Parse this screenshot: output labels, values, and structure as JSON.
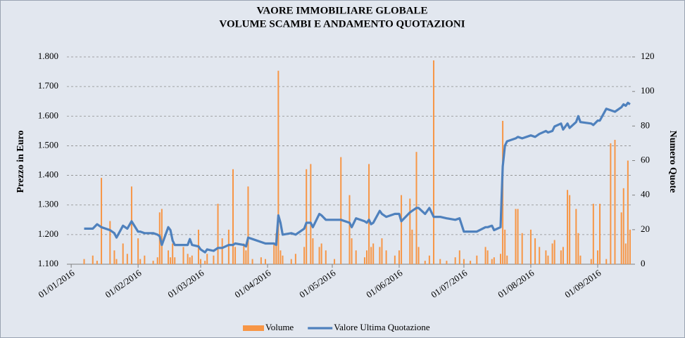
{
  "chart_data": {
    "type": "combo",
    "title": "VAORE IMMOBILIARE GLOBALE",
    "subtitle": "VOLUME SCAMBI E ANDAMENTO QUOTAZIONI",
    "ylabel": "Prezzo in Euro",
    "y2label": "Numero Quote",
    "x": [
      "07/01/2016",
      "11/01/2016",
      "13/01/2016",
      "15/01/2016",
      "19/01/2016",
      "21/01/2016",
      "22/01/2016",
      "25/01/2016",
      "27/01/2016",
      "29/01/2016",
      "01/02/2016",
      "02/02/2016",
      "04/02/2016",
      "08/02/2016",
      "10/02/2016",
      "11/02/2016",
      "12/02/2016",
      "15/02/2016",
      "16/02/2016",
      "17/02/2016",
      "18/02/2016",
      "22/02/2016",
      "24/02/2016",
      "25/02/2016",
      "26/02/2016",
      "29/02/2016",
      "01/03/2016",
      "03/03/2016",
      "04/03/2016",
      "07/03/2016",
      "09/03/2016",
      "11/03/2016",
      "14/03/2016",
      "16/03/2016",
      "17/03/2016",
      "21/03/2016",
      "22/03/2016",
      "23/03/2016",
      "25/03/2016",
      "29/03/2016",
      "31/03/2016",
      "04/04/2016",
      "05/04/2016",
      "06/04/2016",
      "07/04/2016",
      "08/04/2016",
      "12/04/2016",
      "14/04/2016",
      "18/04/2016",
      "19/04/2016",
      "21/04/2016",
      "22/04/2016",
      "25/04/2016",
      "26/04/2016",
      "28/04/2016",
      "02/05/2016",
      "05/05/2016",
      "09/05/2016",
      "10/05/2016",
      "12/05/2016",
      "16/05/2016",
      "17/05/2016",
      "18/05/2016",
      "19/05/2016",
      "20/05/2016",
      "23/05/2016",
      "24/05/2016",
      "26/05/2016",
      "30/05/2016",
      "01/06/2016",
      "02/06/2016",
      "06/06/2016",
      "07/06/2016",
      "09/06/2016",
      "10/06/2016",
      "13/06/2016",
      "15/06/2016",
      "17/06/2016",
      "20/06/2016",
      "23/06/2016",
      "27/06/2016",
      "29/06/2016",
      "01/07/2016",
      "04/07/2016",
      "07/07/2016",
      "11/07/2016",
      "12/07/2016",
      "14/07/2016",
      "15/07/2016",
      "18/07/2016",
      "19/07/2016",
      "20/07/2016",
      "21/07/2016",
      "25/07/2016",
      "26/07/2016",
      "28/07/2016",
      "01/08/2016",
      "03/08/2016",
      "05/08/2016",
      "08/08/2016",
      "09/08/2016",
      "11/08/2016",
      "12/08/2016",
      "15/08/2016",
      "16/08/2016",
      "18/08/2016",
      "19/08/2016",
      "22/08/2016",
      "23/08/2016",
      "24/08/2016",
      "29/08/2016",
      "30/08/2016",
      "01/09/2016",
      "02/09/2016",
      "05/09/2016",
      "07/09/2016",
      "09/09/2016",
      "12/09/2016",
      "13/09/2016",
      "14/09/2016",
      "15/09/2016",
      "16/09/2016"
    ],
    "series": [
      {
        "name": "Volume",
        "color": "#f79646",
        "type": "bar",
        "axis": "y2",
        "values": [
          3,
          5,
          2,
          50,
          25,
          8,
          3,
          12,
          6,
          45,
          15,
          3,
          5,
          2,
          4,
          30,
          32,
          8,
          4,
          12,
          4,
          10,
          6,
          4,
          5,
          20,
          3,
          2,
          6,
          5,
          35,
          15,
          20,
          55,
          10,
          12,
          8,
          45,
          3,
          4,
          3,
          12,
          18,
          112,
          8,
          5,
          3,
          6,
          10,
          55,
          58,
          15,
          10,
          12,
          8,
          3,
          62,
          40,
          15,
          8,
          4,
          8,
          58,
          10,
          12,
          10,
          15,
          8,
          5,
          8,
          40,
          38,
          20,
          65,
          10,
          2,
          5,
          118,
          3,
          2,
          4,
          8,
          3,
          2,
          5,
          10,
          8,
          3,
          4,
          6,
          83,
          20,
          5,
          32,
          32,
          18,
          20,
          15,
          10,
          8,
          5,
          12,
          14,
          8,
          10,
          43,
          40,
          32,
          18,
          5,
          3,
          35,
          8,
          35,
          3,
          70,
          72,
          30,
          44,
          12,
          60,
          20
        ]
      },
      {
        "name": "Valore Ultima Quotazione",
        "color": "#4f81bd",
        "type": "line",
        "values": [
          1.22,
          1.22,
          1.235,
          1.225,
          1.215,
          1.205,
          1.19,
          1.23,
          1.22,
          1.245,
          1.21,
          1.21,
          1.205,
          1.205,
          1.2,
          1.195,
          1.165,
          1.225,
          1.215,
          1.18,
          1.165,
          1.165,
          1.165,
          1.185,
          1.165,
          1.16,
          1.15,
          1.14,
          1.15,
          1.145,
          1.155,
          1.155,
          1.165,
          1.165,
          1.17,
          1.165,
          1.16,
          1.19,
          1.185,
          1.175,
          1.17,
          1.17,
          1.165,
          1.265,
          1.24,
          1.2,
          1.205,
          1.2,
          1.22,
          1.24,
          1.24,
          1.225,
          1.27,
          1.265,
          1.25,
          1.25,
          1.25,
          1.24,
          1.225,
          1.255,
          1.245,
          1.24,
          1.25,
          1.235,
          1.24,
          1.28,
          1.27,
          1.26,
          1.27,
          1.27,
          1.245,
          1.275,
          1.28,
          1.29,
          1.29,
          1.27,
          1.29,
          1.26,
          1.26,
          1.255,
          1.25,
          1.255,
          1.21,
          1.21,
          1.21,
          1.225,
          1.225,
          1.23,
          1.215,
          1.225,
          1.43,
          1.5,
          1.515,
          1.525,
          1.53,
          1.525,
          1.535,
          1.53,
          1.54,
          1.55,
          1.545,
          1.55,
          1.565,
          1.575,
          1.555,
          1.575,
          1.56,
          1.58,
          1.6,
          1.58,
          1.575,
          1.57,
          1.585,
          1.585,
          1.625,
          1.62,
          1.615,
          1.63,
          1.64,
          1.635,
          1.645,
          1.64
        ]
      }
    ],
    "xlim": [
      "30/12/2015",
      "17/09/2016"
    ],
    "xticks": [
      "01/01/2016",
      "01/02/2016",
      "01/03/2016",
      "01/04/2016",
      "01/05/2016",
      "01/06/2016",
      "01/07/2016",
      "01/08/2016",
      "01/09/2016"
    ],
    "ylim": [
      1.1,
      1.8
    ],
    "yticks": [
      {
        "value": 1.1,
        "label": "1.100"
      },
      {
        "value": 1.2,
        "label": "1.200"
      },
      {
        "value": 1.3,
        "label": "1.300"
      },
      {
        "value": 1.4,
        "label": "1.400"
      },
      {
        "value": 1.5,
        "label": "1.500"
      },
      {
        "value": 1.6,
        "label": "1.600"
      },
      {
        "value": 1.7,
        "label": "1.700"
      },
      {
        "value": 1.8,
        "label": "1.800"
      }
    ],
    "y2lim": [
      0,
      120
    ],
    "y2ticks": [
      0,
      20,
      40,
      60,
      80,
      100,
      120
    ],
    "grid": true,
    "legend": "bottom"
  }
}
